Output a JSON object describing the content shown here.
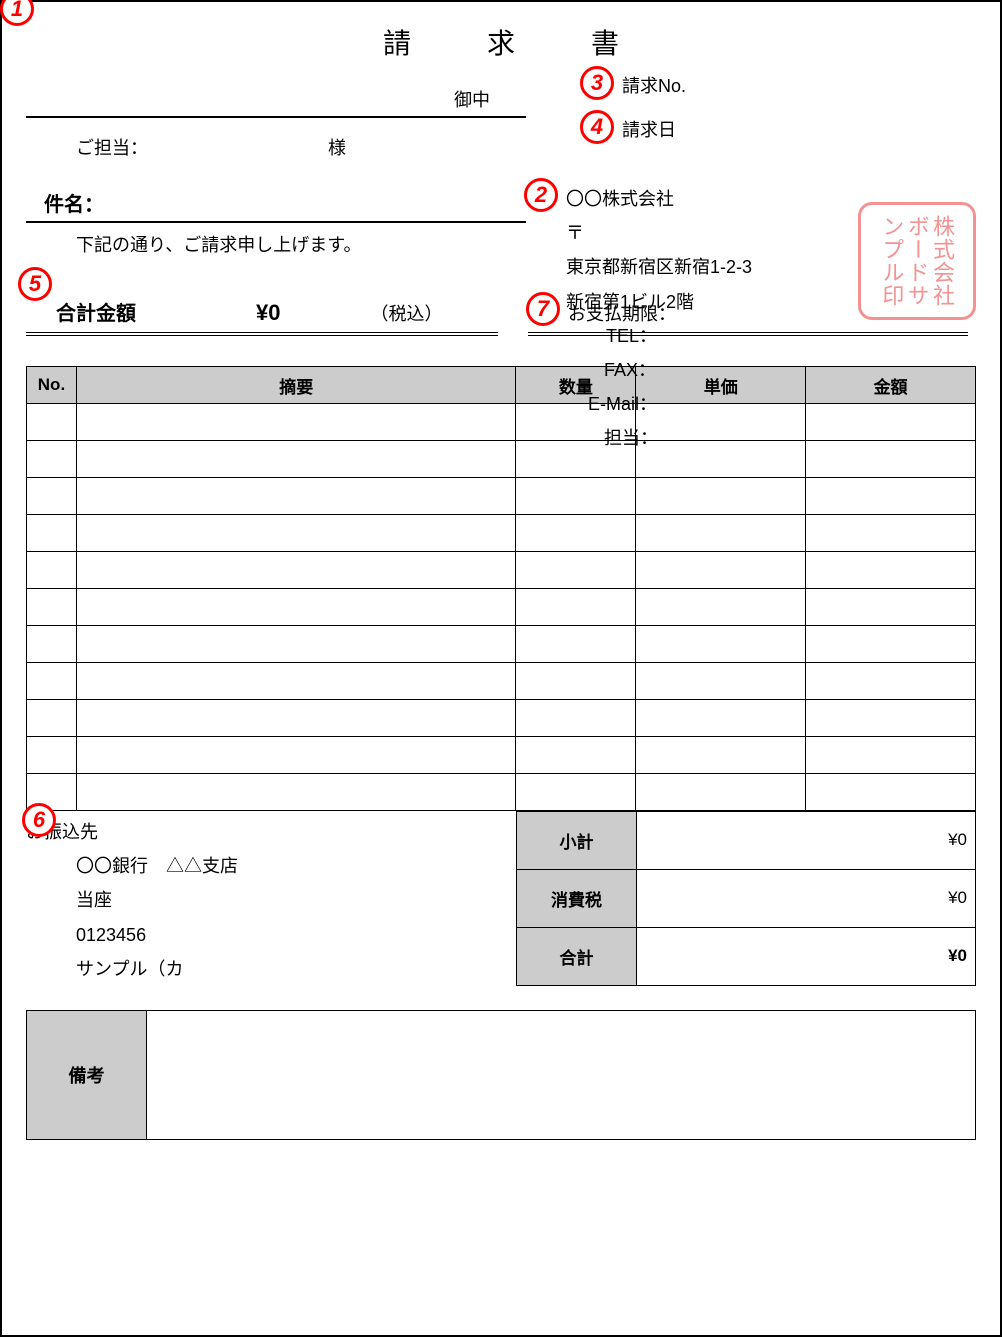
{
  "title": "請　求　書",
  "markers": {
    "m1": "1",
    "m2": "2",
    "m3": "3",
    "m4": "4",
    "m5": "5",
    "m6": "6",
    "m7": "7"
  },
  "client": {
    "onchu": "御中",
    "tanto_label": "ご担当：",
    "sama": "様"
  },
  "subject": {
    "label": "件名：",
    "note": "下記の通り、ご請求申し上げます。"
  },
  "invoice_meta": {
    "no_label": "請求No.",
    "date_label": "請求日"
  },
  "company": {
    "name": "〇〇株式会社",
    "postal": "〒",
    "addr1": "東京都新宿区新宿1-2-3",
    "addr2": "新宿第1ビル2階",
    "tel_label": "TEL：",
    "fax_label": "FAX：",
    "email_label": "E-Mail：",
    "contact_label": "担当："
  },
  "stamp": {
    "line1": "株式会社",
    "line2": "ボードサ",
    "line3": "ンプル印"
  },
  "total": {
    "label": "合計金額",
    "amount": "¥0",
    "tax_note": "（税込）",
    "due_label": "お支払期限："
  },
  "table": {
    "headers": {
      "no": "No.",
      "desc": "摘要",
      "qty": "数量",
      "unit": "単価",
      "amount": "金額"
    },
    "row_count": 11
  },
  "summary": {
    "subtotal_label": "小計",
    "subtotal_value": "¥0",
    "tax_label": "消費税",
    "tax_value": "¥0",
    "total_label": "合計",
    "total_value": "¥0"
  },
  "bank": {
    "title": "お振込先",
    "line1": "〇〇銀行　△△支店",
    "line2": "当座",
    "line3": "0123456",
    "line4": "サンプル（カ"
  },
  "remarks": {
    "label": "備考"
  },
  "colors": {
    "marker": "#ff0000",
    "stamp": "#f08080",
    "header_bg": "#cccccc",
    "border": "#000000"
  }
}
